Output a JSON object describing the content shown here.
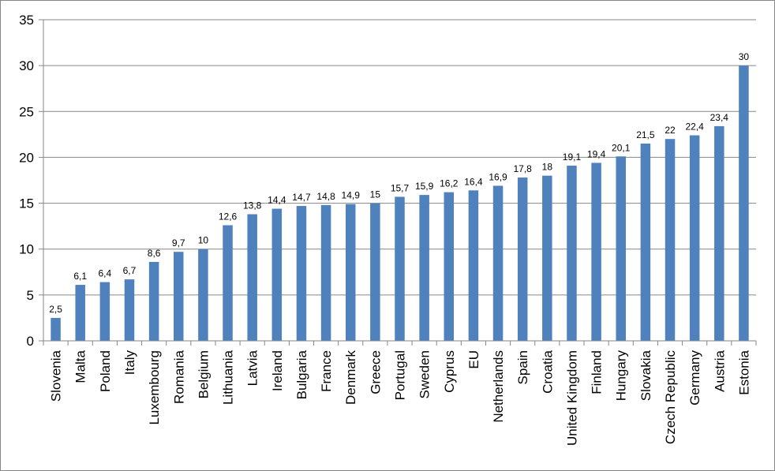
{
  "chart_data": {
    "type": "bar",
    "categories": [
      "Slovenia",
      "Malta",
      "Poland",
      "Italy",
      "Luxembourg",
      "Romania",
      "Belgium",
      "Lithuania",
      "Latvia",
      "Ireland",
      "Bulgaria",
      "France",
      "Denmark",
      "Greece",
      "Portugal",
      "Sweden",
      "Cyprus",
      "EU",
      "Netherlands",
      "Spain",
      "Croatia",
      "United Kingdom",
      "Finland",
      "Hungary",
      "Slovakia",
      "Czech Republic",
      "Germany",
      "Austria",
      "Estonia"
    ],
    "values": [
      2.5,
      6.1,
      6.4,
      6.7,
      8.6,
      9.7,
      10,
      12.6,
      13.8,
      14.4,
      14.7,
      14.8,
      14.9,
      15,
      15.7,
      15.9,
      16.2,
      16.4,
      16.9,
      17.8,
      18,
      19.1,
      19.4,
      20.1,
      21.5,
      22,
      22.4,
      23.4,
      30
    ],
    "data_labels": [
      "2,5",
      "6,1",
      "6,4",
      "6,7",
      "8,6",
      "9,7",
      "10",
      "12,6",
      "13,8",
      "14,4",
      "14,7",
      "14,8",
      "14,9",
      "15",
      "15,7",
      "15,9",
      "16,2",
      "16,4",
      "16,9",
      "17,8",
      "18",
      "19,1",
      "19,4",
      "20,1",
      "21,5",
      "22",
      "22,4",
      "23,4",
      "30"
    ],
    "ylim": [
      0,
      35
    ],
    "yticks": [
      "0",
      "5",
      "10",
      "15",
      "20",
      "25",
      "30",
      "35"
    ],
    "grid": true,
    "bar_color": "#4F81BD",
    "grid_color": "#868686",
    "title": "",
    "xlabel": "",
    "ylabel": ""
  }
}
